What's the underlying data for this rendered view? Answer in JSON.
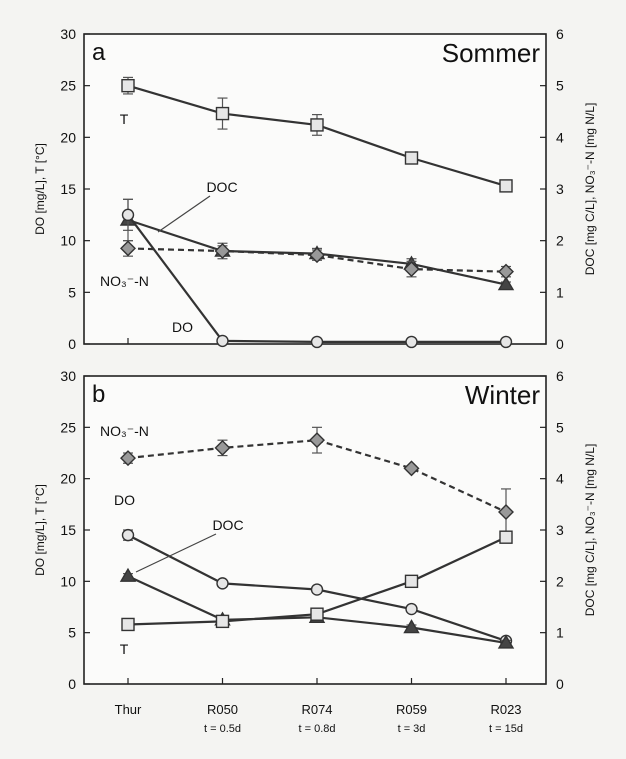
{
  "chart_data": {
    "categories": [
      "Thur",
      "R050",
      "R074",
      "R059",
      "R023"
    ],
    "category_sublabels": [
      "",
      "t = 0.5d",
      "t = 0.8d",
      "t = 3d",
      "t = 15d"
    ],
    "panels": [
      {
        "type": "line",
        "letter": "a",
        "title": "Sommer",
        "ylabel_left": "DO [mg/L], T [°C]",
        "ylabel_right": "DOC [mg C/L], NO₃⁻-N [mg N/L]",
        "ylim_left": [
          0,
          30
        ],
        "ylim_right": [
          0,
          6
        ],
        "left_ticks": [
          "0",
          "5",
          "10",
          "15",
          "20",
          "25",
          "30"
        ],
        "right_ticks": [
          "0",
          "1",
          "2",
          "3",
          "4",
          "5",
          "6"
        ],
        "series": [
          {
            "name": "T",
            "axis": "left",
            "marker": "square",
            "dashed": false,
            "values": [
              25,
              22.3,
              21.2,
              18,
              15.3
            ],
            "errors": [
              0.8,
              1.5,
              1.0,
              0,
              0
            ]
          },
          {
            "name": "DOC",
            "axis": "right",
            "marker": "triangle",
            "dashed": false,
            "values": [
              2.4,
              1.8,
              1.75,
              1.55,
              1.15
            ],
            "errors": [
              0.4,
              0.15,
              0.1,
              0.1,
              0.05
            ]
          },
          {
            "name": "NO₃⁻-N",
            "axis": "right",
            "marker": "diamond",
            "dashed": true,
            "values": [
              1.85,
              1.8,
              1.72,
              1.45,
              1.4
            ],
            "errors": [
              0.15,
              0.1,
              0.1,
              0.15,
              0.1
            ]
          },
          {
            "name": "DO",
            "axis": "left",
            "marker": "circle",
            "dashed": false,
            "values": [
              12.5,
              0.3,
              0.2,
              0.2,
              0.2
            ],
            "errors": [
              1.5,
              0,
              0,
              0,
              0
            ]
          }
        ],
        "annotations": [
          {
            "text": "T",
            "series": "T"
          },
          {
            "text": "DOC",
            "series": "DOC"
          },
          {
            "text": "NO₃⁻-N",
            "series": "NO₃⁻-N"
          },
          {
            "text": "DO",
            "series": "DO"
          }
        ]
      },
      {
        "type": "line",
        "letter": "b",
        "title": "Winter",
        "ylabel_left": "DO [mg/L], T [°C]",
        "ylabel_right": "DOC [mg C/L], NO₃⁻-N [mg N/L]",
        "ylim_left": [
          0,
          30
        ],
        "ylim_right": [
          0,
          6
        ],
        "left_ticks": [
          "0",
          "5",
          "10",
          "15",
          "20",
          "25",
          "30"
        ],
        "right_ticks": [
          "0",
          "1",
          "2",
          "3",
          "4",
          "5",
          "6"
        ],
        "series": [
          {
            "name": "NO₃⁻-N",
            "axis": "right",
            "marker": "diamond",
            "dashed": true,
            "values": [
              4.4,
              4.6,
              4.75,
              4.2,
              3.35
            ],
            "errors": [
              0.1,
              0.15,
              0.25,
              0.05,
              0.45
            ]
          },
          {
            "name": "DO",
            "axis": "left",
            "marker": "circle",
            "dashed": false,
            "values": [
              14.5,
              9.8,
              9.2,
              7.3,
              4.2
            ],
            "errors": [
              0.5,
              0.3,
              0.3,
              0.3,
              0.3
            ]
          },
          {
            "name": "DOC",
            "axis": "right",
            "marker": "triangle",
            "dashed": false,
            "values": [
              2.1,
              1.25,
              1.3,
              1.1,
              0.8
            ],
            "errors": [
              0.05,
              0.05,
              0.05,
              0.05,
              0.05
            ]
          },
          {
            "name": "T",
            "axis": "left",
            "marker": "square",
            "dashed": false,
            "values": [
              5.8,
              6.1,
              6.8,
              10,
              14.3
            ],
            "errors": [
              0.3,
              0.3,
              0.3,
              0.5,
              0.5
            ]
          }
        ],
        "annotations": [
          {
            "text": "NO₃⁻-N",
            "series": "NO₃⁻-N"
          },
          {
            "text": "DO",
            "series": "DO"
          },
          {
            "text": "DOC",
            "series": "DOC"
          },
          {
            "text": "T",
            "series": "T"
          }
        ]
      }
    ]
  }
}
